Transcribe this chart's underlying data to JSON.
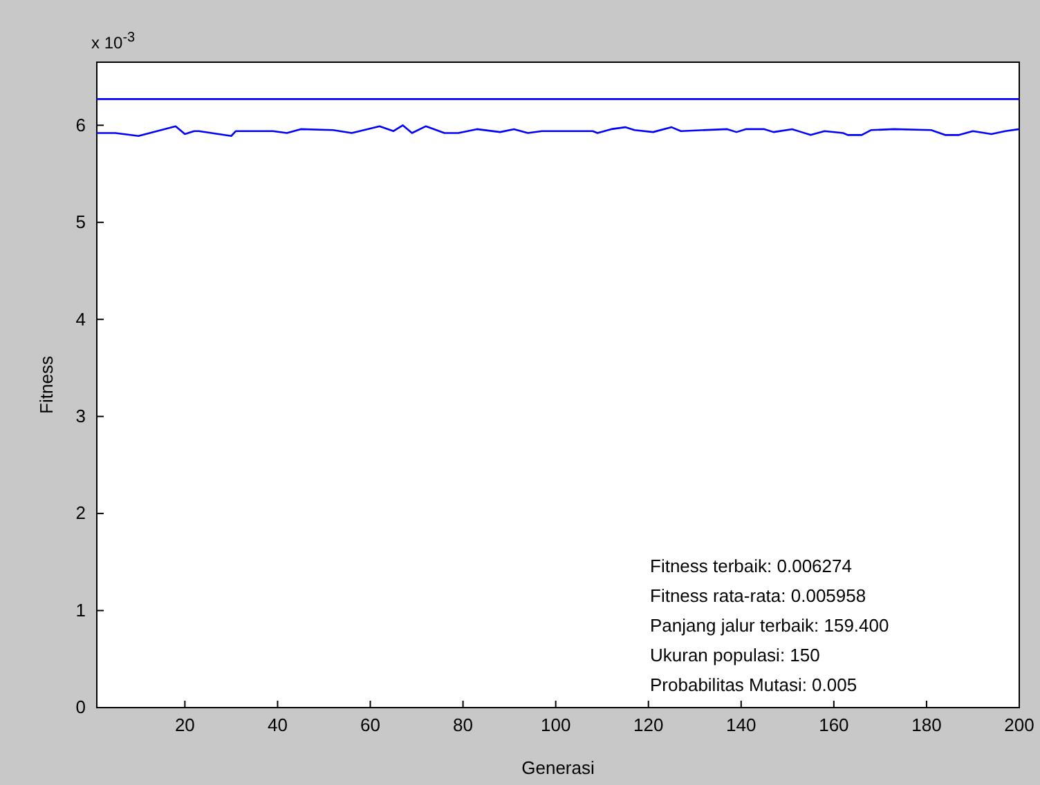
{
  "chart_data": {
    "type": "line",
    "xlabel": "Generasi",
    "ylabel": "Fitness",
    "xlim": [
      1,
      200
    ],
    "ylim": [
      0,
      6.65
    ],
    "xticks": [
      20,
      40,
      60,
      80,
      100,
      120,
      140,
      160,
      180,
      200
    ],
    "yticks": [
      0,
      1,
      2,
      3,
      4,
      5,
      6
    ],
    "annotations": [
      "x 10$^{-3}$",
      "Fitness terbaik: 0.006274",
      "Fitness rata-rata: 0.005958",
      "Panjang jalur terbaik: 159.400",
      "Ukuran populasi: 150",
      "Probabilitas Mutasi: 0.005"
    ],
    "grid": false,
    "marker": "none",
    "line_style": "solid",
    "series": [
      {
        "color": "#0000ff",
        "x": [
          1,
          200
        ],
        "values": [
          6.27,
          6.27
        ]
      },
      {
        "color": "#0000ff",
        "x": [
          1,
          5,
          10,
          14,
          18,
          20,
          22,
          23,
          30,
          31,
          39,
          42,
          45,
          52,
          56,
          62,
          65,
          67,
          69,
          72,
          76,
          79,
          83,
          88,
          91,
          94,
          97,
          103,
          108,
          109,
          112,
          115,
          117,
          121,
          125,
          127,
          137,
          139,
          141,
          145,
          147,
          151,
          153,
          155,
          158,
          162,
          163,
          166,
          168,
          173,
          181,
          184,
          187,
          190,
          194,
          197,
          200
        ],
        "values": [
          5.92,
          5.92,
          5.89,
          5.94,
          5.99,
          5.91,
          5.94,
          5.94,
          5.89,
          5.94,
          5.94,
          5.92,
          5.96,
          5.95,
          5.92,
          5.99,
          5.94,
          6.0,
          5.92,
          5.99,
          5.92,
          5.92,
          5.96,
          5.93,
          5.96,
          5.92,
          5.94,
          5.94,
          5.94,
          5.92,
          5.96,
          5.98,
          5.95,
          5.93,
          5.98,
          5.94,
          5.96,
          5.93,
          5.96,
          5.96,
          5.93,
          5.96,
          5.93,
          5.9,
          5.94,
          5.92,
          5.9,
          5.9,
          5.95,
          5.96,
          5.95,
          5.9,
          5.9,
          5.94,
          5.91,
          5.94,
          5.96
        ]
      }
    ]
  }
}
